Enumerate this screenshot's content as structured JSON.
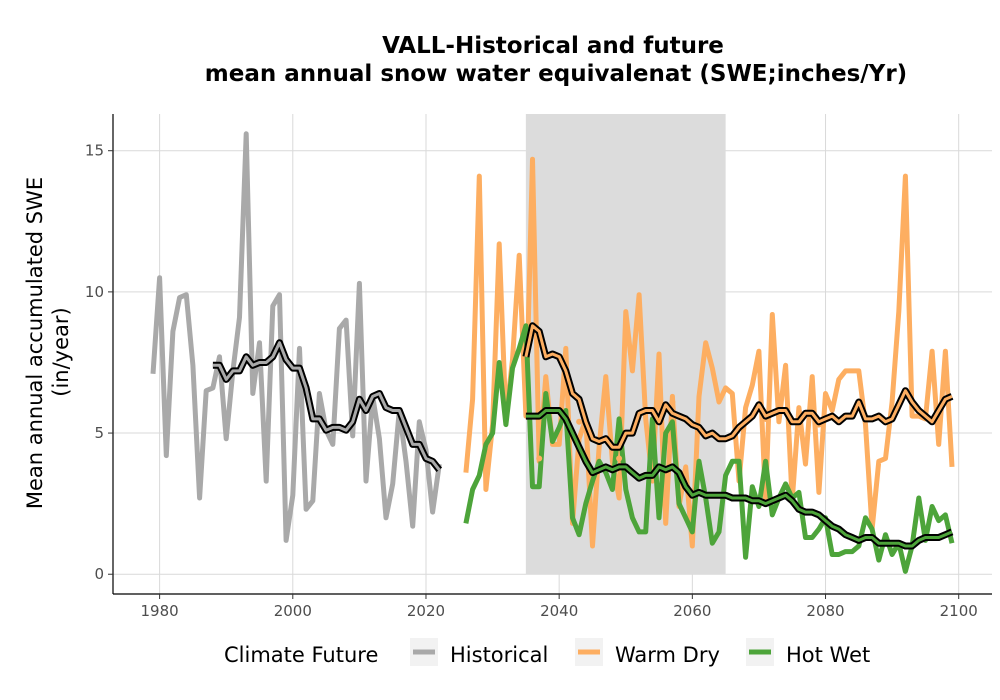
{
  "chart_data": {
    "type": "line",
    "title_line1": "VALL-Historical and future",
    "title_line2": "mean annual snow water equivalenat (SWE;inches/Yr)",
    "xlabel": "",
    "ylabel_line1": "Mean annual accumulated SWE",
    "ylabel_line2": "(in/year)",
    "xlim": [
      1973,
      2105
    ],
    "ylim": [
      -0.7,
      16.3
    ],
    "x_ticks": [
      1980,
      2000,
      2020,
      2040,
      2060,
      2080,
      2100
    ],
    "y_ticks": [
      0,
      5,
      10,
      15
    ],
    "grid": true,
    "shaded_period": [
      2035,
      2065
    ],
    "legend_title": "Climate Future",
    "legend_position": "bottom",
    "series": [
      {
        "name": "Historical",
        "color": "#A9A9A9",
        "x": [
          1979,
          1980,
          1981,
          1982,
          1983,
          1984,
          1985,
          1986,
          1987,
          1988,
          1989,
          1990,
          1991,
          1992,
          1993,
          1994,
          1995,
          1996,
          1997,
          1998,
          1999,
          2000,
          2001,
          2002,
          2003,
          2004,
          2005,
          2006,
          2007,
          2008,
          2009,
          2010,
          2011,
          2012,
          2013,
          2014,
          2015,
          2016,
          2017,
          2018,
          2019,
          2020,
          2021,
          2022
        ],
        "values": [
          7.1,
          10.5,
          4.2,
          8.6,
          9.8,
          9.9,
          7.4,
          2.7,
          6.5,
          6.6,
          7.7,
          4.8,
          7.2,
          9.1,
          15.6,
          6.4,
          8.2,
          3.3,
          9.5,
          9.9,
          1.2,
          2.8,
          8.0,
          2.3,
          2.6,
          6.4,
          5.1,
          4.6,
          8.7,
          9.0,
          4.9,
          10.3,
          3.3,
          6.3,
          4.8,
          2.0,
          3.2,
          5.8,
          4.0,
          1.7,
          5.4,
          4.4,
          2.2,
          3.9
        ],
        "smooth_x": [
          1988,
          1989,
          1990,
          1991,
          1992,
          1993,
          1994,
          1995,
          1996,
          1997,
          1998,
          1999,
          2000,
          2001,
          2002,
          2003,
          2004,
          2005,
          2006,
          2007,
          2008,
          2009,
          2010,
          2011,
          2012,
          2013,
          2014,
          2015,
          2016,
          2017,
          2018,
          2019,
          2020,
          2021,
          2022
        ],
        "smooth": [
          7.4,
          7.4,
          6.9,
          7.2,
          7.2,
          7.7,
          7.4,
          7.5,
          7.5,
          7.7,
          8.2,
          7.6,
          7.3,
          7.3,
          6.6,
          5.5,
          5.5,
          5.1,
          5.2,
          5.2,
          5.1,
          5.4,
          6.2,
          5.8,
          6.3,
          6.4,
          5.9,
          5.8,
          5.8,
          5.2,
          4.6,
          4.6,
          4.1,
          4.0,
          3.7
        ]
      },
      {
        "name": "Warm Dry",
        "color": "#FDAE61",
        "x": [
          2026,
          2027,
          2028,
          2029,
          2030,
          2031,
          2032,
          2033,
          2034,
          2035,
          2036,
          2037,
          2038,
          2039,
          2040,
          2041,
          2042,
          2043,
          2044,
          2045,
          2046,
          2047,
          2048,
          2049,
          2050,
          2051,
          2052,
          2053,
          2054,
          2055,
          2056,
          2057,
          2058,
          2059,
          2060,
          2061,
          2062,
          2063,
          2064,
          2065,
          2066,
          2067,
          2068,
          2069,
          2070,
          2071,
          2072,
          2073,
          2074,
          2075,
          2076,
          2077,
          2078,
          2079,
          2080,
          2081,
          2082,
          2083,
          2084,
          2085,
          2086,
          2087,
          2088,
          2089,
          2090,
          2091,
          2092,
          2093,
          2094,
          2095,
          2096,
          2097,
          2098,
          2099
        ],
        "values": [
          3.6,
          6.2,
          14.1,
          3.0,
          5.3,
          11.7,
          5.5,
          7.6,
          11.3,
          5.6,
          14.7,
          4.0,
          7.0,
          4.6,
          4.6,
          8.0,
          1.8,
          4.8,
          5.5,
          1.0,
          4.5,
          7.0,
          4.0,
          2.7,
          9.3,
          7.2,
          9.9,
          5.5,
          3.3,
          7.8,
          1.8,
          6.3,
          2.4,
          3.8,
          1.0,
          6.3,
          8.2,
          7.3,
          6.1,
          6.6,
          6.4,
          3.3,
          5.9,
          6.7,
          7.9,
          2.6,
          9.2,
          5.4,
          7.4,
          2.6,
          5.9,
          3.9,
          7.0,
          2.9,
          6.4,
          5.8,
          6.9,
          7.2,
          7.2,
          7.2,
          5.3,
          1.6,
          4.0,
          4.1,
          6.1,
          9.3,
          14.1,
          5.6,
          5.6,
          5.5,
          7.9,
          4.6,
          7.9,
          3.8
        ],
        "smooth_x": [
          2035,
          2036,
          2037,
          2038,
          2039,
          2040,
          2041,
          2042,
          2043,
          2044,
          2045,
          2046,
          2047,
          2048,
          2049,
          2050,
          2051,
          2052,
          2053,
          2054,
          2055,
          2056,
          2057,
          2058,
          2059,
          2060,
          2061,
          2062,
          2063,
          2064,
          2065,
          2066,
          2067,
          2068,
          2069,
          2070,
          2071,
          2072,
          2073,
          2074,
          2075,
          2076,
          2077,
          2078,
          2079,
          2080,
          2081,
          2082,
          2083,
          2084,
          2085,
          2086,
          2087,
          2088,
          2089,
          2090,
          2091,
          2092,
          2093,
          2094,
          2095,
          2096,
          2097,
          2098,
          2099
        ],
        "smooth": [
          7.7,
          8.8,
          8.6,
          7.7,
          7.8,
          7.7,
          7.2,
          6.4,
          6.2,
          5.4,
          4.8,
          4.7,
          4.8,
          4.5,
          4.5,
          5.0,
          5.0,
          5.7,
          5.8,
          5.8,
          5.4,
          6.0,
          5.7,
          5.6,
          5.5,
          5.3,
          5.2,
          4.9,
          5.0,
          4.8,
          4.8,
          4.9,
          5.2,
          5.4,
          5.6,
          6.0,
          5.6,
          5.7,
          5.8,
          5.8,
          5.4,
          5.4,
          5.7,
          5.7,
          5.4,
          5.5,
          5.6,
          5.4,
          5.6,
          5.6,
          6.1,
          5.5,
          5.5,
          5.6,
          5.4,
          5.5,
          6.0,
          6.5,
          6.1,
          5.8,
          5.6,
          5.4,
          5.8,
          6.2,
          6.3
        ],
        "dots_x": [
          2037,
          2043,
          2049,
          2057,
          2071,
          2079
        ],
        "dots": [
          4.1,
          5.4,
          4.1,
          6.1,
          5.5,
          5.3
        ]
      },
      {
        "name": "Hot Wet",
        "color": "#4DA43A",
        "x": [
          2026,
          2027,
          2028,
          2029,
          2030,
          2031,
          2032,
          2033,
          2034,
          2035,
          2036,
          2037,
          2038,
          2039,
          2040,
          2041,
          2042,
          2043,
          2044,
          2045,
          2046,
          2047,
          2048,
          2049,
          2050,
          2051,
          2052,
          2053,
          2054,
          2055,
          2056,
          2057,
          2058,
          2059,
          2060,
          2061,
          2062,
          2063,
          2064,
          2065,
          2066,
          2067,
          2068,
          2069,
          2070,
          2071,
          2072,
          2073,
          2074,
          2075,
          2076,
          2077,
          2078,
          2079,
          2080,
          2081,
          2082,
          2083,
          2084,
          2085,
          2086,
          2087,
          2088,
          2089,
          2090,
          2091,
          2092,
          2093,
          2094,
          2095,
          2096,
          2097,
          2098,
          2099
        ],
        "values": [
          1.8,
          3.0,
          3.5,
          4.6,
          5.0,
          7.5,
          5.3,
          7.3,
          8.0,
          8.8,
          3.1,
          3.1,
          6.4,
          4.7,
          5.2,
          5.8,
          2.0,
          1.4,
          2.5,
          3.3,
          4.0,
          3.6,
          3.0,
          5.5,
          3.0,
          2.0,
          1.5,
          1.5,
          5.5,
          2.0,
          5.0,
          5.4,
          2.5,
          2.0,
          1.5,
          4.0,
          2.7,
          1.1,
          1.5,
          3.5,
          4.0,
          4.0,
          0.6,
          3.1,
          2.4,
          4.0,
          2.1,
          2.7,
          3.2,
          2.7,
          2.9,
          1.3,
          1.3,
          1.6,
          2.0,
          0.7,
          0.7,
          0.8,
          0.8,
          1.0,
          2.0,
          1.6,
          0.5,
          1.4,
          0.7,
          1.1,
          0.1,
          1.0,
          2.7,
          1.2,
          2.4,
          1.9,
          2.1,
          1.1
        ],
        "smooth_x": [
          2035,
          2036,
          2037,
          2038,
          2039,
          2040,
          2041,
          2042,
          2043,
          2044,
          2045,
          2046,
          2047,
          2048,
          2049,
          2050,
          2051,
          2052,
          2053,
          2054,
          2055,
          2056,
          2057,
          2058,
          2059,
          2060,
          2061,
          2062,
          2063,
          2064,
          2065,
          2066,
          2067,
          2068,
          2069,
          2070,
          2071,
          2072,
          2073,
          2074,
          2075,
          2076,
          2077,
          2078,
          2079,
          2080,
          2081,
          2082,
          2083,
          2084,
          2085,
          2086,
          2087,
          2088,
          2089,
          2090,
          2091,
          2092,
          2093,
          2094,
          2095,
          2096,
          2097,
          2098,
          2099
        ],
        "smooth": [
          5.6,
          5.6,
          5.6,
          5.8,
          5.8,
          5.8,
          5.5,
          5.0,
          4.5,
          4.0,
          3.6,
          3.7,
          3.8,
          3.7,
          3.8,
          3.8,
          3.6,
          3.4,
          3.5,
          3.5,
          3.8,
          3.7,
          3.8,
          3.6,
          3.1,
          2.8,
          2.9,
          2.8,
          2.8,
          2.8,
          2.8,
          2.7,
          2.7,
          2.7,
          2.6,
          2.6,
          2.5,
          2.6,
          2.7,
          2.8,
          2.6,
          2.3,
          2.2,
          2.2,
          2.1,
          1.9,
          1.7,
          1.6,
          1.4,
          1.3,
          1.2,
          1.3,
          1.3,
          1.1,
          1.1,
          1.1,
          1.1,
          1.0,
          1.0,
          1.2,
          1.3,
          1.3,
          1.3,
          1.4,
          1.5
        ]
      }
    ]
  }
}
